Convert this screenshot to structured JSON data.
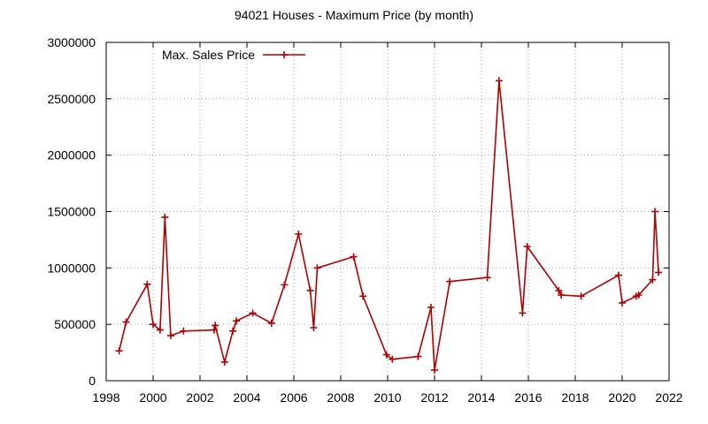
{
  "chart_data": {
    "type": "line",
    "title": "94021 Houses - Maximum Price (by month)",
    "xlabel": "",
    "ylabel": "",
    "xlim": [
      1998,
      2022
    ],
    "ylim": [
      0,
      3000000
    ],
    "x_ticks": [
      1998,
      2000,
      2002,
      2004,
      2006,
      2008,
      2010,
      2012,
      2014,
      2016,
      2018,
      2020,
      2022
    ],
    "y_ticks": [
      0,
      500000,
      1000000,
      1500000,
      2000000,
      2500000,
      3000000
    ],
    "grid": true,
    "legend_position": "top-left",
    "series": [
      {
        "name": "Max. Sales Price",
        "color": "#b00000",
        "marker": "plus",
        "points": [
          [
            1998.55,
            265000
          ],
          [
            1998.85,
            520000
          ],
          [
            1999.75,
            855000
          ],
          [
            2000.0,
            500000
          ],
          [
            2000.3,
            450000
          ],
          [
            2000.5,
            1450000
          ],
          [
            2000.75,
            400000
          ],
          [
            2001.3,
            440000
          ],
          [
            2002.6,
            450000
          ],
          [
            2002.65,
            490000
          ],
          [
            2003.05,
            165000
          ],
          [
            2003.4,
            440000
          ],
          [
            2003.55,
            530000
          ],
          [
            2004.25,
            600000
          ],
          [
            2005.05,
            510000
          ],
          [
            2005.6,
            850000
          ],
          [
            2006.2,
            1300000
          ],
          [
            2006.7,
            800000
          ],
          [
            2006.85,
            470000
          ],
          [
            2007.0,
            1000000
          ],
          [
            2008.55,
            1100000
          ],
          [
            2008.95,
            750000
          ],
          [
            2009.95,
            230000
          ],
          [
            2010.2,
            190000
          ],
          [
            2011.3,
            215000
          ],
          [
            2011.85,
            650000
          ],
          [
            2012.0,
            95000
          ],
          [
            2012.65,
            880000
          ],
          [
            2014.25,
            915000
          ],
          [
            2014.75,
            2660000
          ],
          [
            2015.75,
            600000
          ],
          [
            2015.95,
            1190000
          ],
          [
            2017.3,
            800000
          ],
          [
            2017.4,
            760000
          ],
          [
            2018.25,
            750000
          ],
          [
            2019.85,
            935000
          ],
          [
            2020.0,
            690000
          ],
          [
            2020.6,
            750000
          ],
          [
            2020.7,
            760000
          ],
          [
            2021.3,
            895000
          ],
          [
            2021.4,
            1500000
          ],
          [
            2021.55,
            960000
          ]
        ]
      }
    ]
  }
}
